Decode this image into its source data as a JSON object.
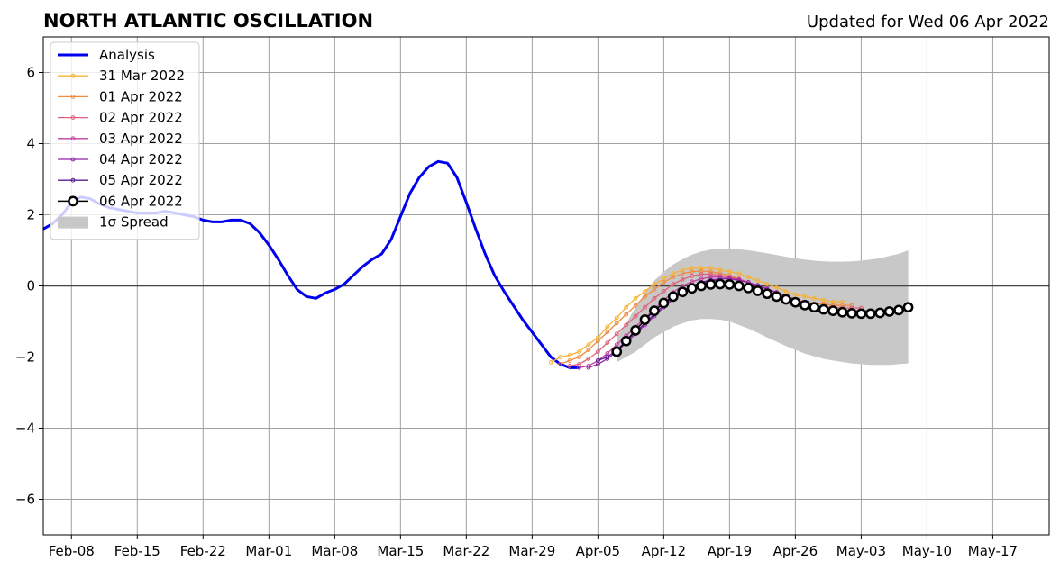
{
  "title": "NORTH ATLANTIC OSCILLATION",
  "subtitle": "Updated for Wed 06 Apr 2022",
  "chart_data": {
    "type": "line",
    "xlim": [
      "2022-02-05",
      "2022-05-23"
    ],
    "ylim": [
      -7,
      7
    ],
    "grid": true,
    "legend_position": "top-left",
    "x_ticks": [
      "Feb-08",
      "Feb-15",
      "Feb-22",
      "Mar-01",
      "Mar-08",
      "Mar-15",
      "Mar-22",
      "Mar-29",
      "Apr-05",
      "Apr-12",
      "Apr-19",
      "Apr-26",
      "May-03",
      "May-10",
      "May-17"
    ],
    "y_ticks": [
      "6",
      "4",
      "2",
      "0",
      "−2",
      "−4",
      "−6"
    ],
    "y_tick_values": [
      6,
      4,
      2,
      0,
      -2,
      -4,
      -6
    ],
    "zero_line": true,
    "series": [
      {
        "name": "Analysis",
        "color": "#0000ee",
        "style": "line",
        "x": [
          "2022-02-05",
          "2022-02-06",
          "2022-02-07",
          "2022-02-08",
          "2022-02-09",
          "2022-02-10",
          "2022-02-11",
          "2022-02-12",
          "2022-02-13",
          "2022-02-14",
          "2022-02-15",
          "2022-02-16",
          "2022-02-17",
          "2022-02-18",
          "2022-02-19",
          "2022-02-20",
          "2022-02-21",
          "2022-02-22",
          "2022-02-23",
          "2022-02-24",
          "2022-02-25",
          "2022-02-26",
          "2022-02-27",
          "2022-02-28",
          "2022-03-01",
          "2022-03-02",
          "2022-03-03",
          "2022-03-04",
          "2022-03-05",
          "2022-03-06",
          "2022-03-07",
          "2022-03-08",
          "2022-03-09",
          "2022-03-10",
          "2022-03-11",
          "2022-03-12",
          "2022-03-13",
          "2022-03-14",
          "2022-03-15",
          "2022-03-16",
          "2022-03-17",
          "2022-03-18",
          "2022-03-19",
          "2022-03-20",
          "2022-03-21",
          "2022-03-22",
          "2022-03-23",
          "2022-03-24",
          "2022-03-25",
          "2022-03-26",
          "2022-03-27",
          "2022-03-28",
          "2022-03-29",
          "2022-03-30",
          "2022-03-31",
          "2022-04-01",
          "2022-04-02",
          "2022-04-03"
        ],
        "values": [
          1.6,
          1.75,
          2.0,
          2.35,
          2.5,
          2.45,
          2.3,
          2.2,
          2.15,
          2.1,
          2.05,
          2.05,
          2.05,
          2.1,
          2.05,
          2.0,
          1.95,
          1.85,
          1.8,
          1.8,
          1.85,
          1.85,
          1.75,
          1.5,
          1.15,
          0.75,
          0.3,
          -0.1,
          -0.3,
          -0.35,
          -0.2,
          -0.1,
          0.05,
          0.3,
          0.55,
          0.75,
          0.9,
          1.3,
          1.95,
          2.6,
          3.05,
          3.35,
          3.5,
          3.45,
          3.05,
          2.35,
          1.6,
          0.9,
          0.3,
          -0.15,
          -0.55,
          -0.95,
          -1.3,
          -1.65,
          -2.0,
          -2.2,
          -2.3,
          -2.3
        ]
      },
      {
        "name": "31 Mar 2022",
        "color": "#f5b235",
        "style": "dotline",
        "start": "2022-03-31",
        "values": [
          -2.15,
          -2.0,
          -1.95,
          -1.85,
          -1.65,
          -1.45,
          -1.15,
          -0.9,
          -0.6,
          -0.35,
          -0.15,
          0.05,
          0.2,
          0.35,
          0.45,
          0.5,
          0.5,
          0.5,
          0.45,
          0.4,
          0.35,
          0.25,
          0.15,
          0.05,
          -0.05,
          -0.15,
          -0.25,
          -0.3,
          -0.35,
          -0.4,
          -0.45,
          -0.45
        ]
      },
      {
        "name": "01 Apr 2022",
        "color": "#ef8a45",
        "style": "dotline",
        "start": "2022-04-01",
        "values": [
          -2.2,
          -2.1,
          -2.0,
          -1.8,
          -1.55,
          -1.3,
          -1.05,
          -0.8,
          -0.55,
          -0.3,
          -0.1,
          0.1,
          0.25,
          0.35,
          0.4,
          0.42,
          0.4,
          0.35,
          0.3,
          0.2,
          0.1,
          0.0,
          -0.1,
          -0.2,
          -0.3,
          -0.38,
          -0.45,
          -0.5,
          -0.5,
          -0.55,
          -0.55,
          -0.55
        ]
      },
      {
        "name": "02 Apr 2022",
        "color": "#e0607a",
        "style": "dotline",
        "start": "2022-04-02",
        "values": [
          -2.25,
          -2.2,
          -2.05,
          -1.85,
          -1.6,
          -1.35,
          -1.1,
          -0.85,
          -0.6,
          -0.35,
          -0.15,
          0.05,
          0.18,
          0.28,
          0.33,
          0.33,
          0.3,
          0.25,
          0.2,
          0.1,
          0.0,
          -0.1,
          -0.2,
          -0.3,
          -0.4,
          -0.48,
          -0.55,
          -0.6,
          -0.6,
          -0.62,
          -0.62,
          -0.62
        ]
      },
      {
        "name": "03 Apr 2022",
        "color": "#c2409e",
        "style": "dotline",
        "start": "2022-04-03",
        "values": [
          -2.3,
          -2.25,
          -2.1,
          -1.9,
          -1.65,
          -1.4,
          -1.15,
          -0.9,
          -0.65,
          -0.4,
          -0.18,
          0.0,
          0.12,
          0.2,
          0.25,
          0.25,
          0.22,
          0.17,
          0.1,
          0.0,
          -0.1,
          -0.2,
          -0.3,
          -0.4,
          -0.5,
          -0.58,
          -0.65,
          -0.68,
          -0.7,
          -0.7,
          -0.7,
          -0.7
        ]
      },
      {
        "name": "04 Apr 2022",
        "color": "#9421a8",
        "style": "dotline",
        "start": "2022-04-04",
        "values": [
          -2.3,
          -2.2,
          -2.05,
          -1.85,
          -1.6,
          -1.35,
          -1.1,
          -0.85,
          -0.6,
          -0.38,
          -0.18,
          -0.02,
          0.1,
          0.17,
          0.2,
          0.2,
          0.16,
          0.1,
          0.02,
          -0.08,
          -0.18,
          -0.28,
          -0.38,
          -0.48,
          -0.57,
          -0.64,
          -0.7,
          -0.73,
          -0.75,
          -0.75,
          -0.75,
          -0.75
        ]
      },
      {
        "name": "05 Apr 2022",
        "color": "#5a1c96",
        "style": "dotline",
        "start": "2022-04-05",
        "values": [
          -2.1,
          -2.0,
          -1.8,
          -1.55,
          -1.3,
          -1.05,
          -0.8,
          -0.55,
          -0.33,
          -0.15,
          0.0,
          0.1,
          0.15,
          0.15,
          0.12,
          0.05,
          -0.05,
          -0.15,
          -0.25,
          -0.35,
          -0.45,
          -0.55,
          -0.62,
          -0.68,
          -0.72,
          -0.75,
          -0.77,
          -0.78,
          -0.78,
          -0.78,
          -0.75,
          -0.72
        ]
      },
      {
        "name": "06 Apr 2022",
        "color": "#000000",
        "style": "circles",
        "start": "2022-04-07",
        "values": [
          -1.85,
          -1.55,
          -1.25,
          -0.95,
          -0.7,
          -0.48,
          -0.3,
          -0.17,
          -0.07,
          0.0,
          0.04,
          0.05,
          0.04,
          0.0,
          -0.06,
          -0.14,
          -0.22,
          -0.3,
          -0.38,
          -0.46,
          -0.54,
          -0.6,
          -0.66,
          -0.7,
          -0.74,
          -0.77,
          -0.78,
          -0.78,
          -0.76,
          -0.72,
          -0.68,
          -0.6
        ]
      }
    ],
    "spread": {
      "name": "1σ Spread",
      "color": "#c8c8c8",
      "start": "2022-04-07",
      "upper": [
        -1.45,
        -1.05,
        -0.6,
        -0.2,
        0.15,
        0.4,
        0.6,
        0.75,
        0.88,
        0.97,
        1.02,
        1.05,
        1.05,
        1.03,
        1.0,
        0.96,
        0.92,
        0.87,
        0.82,
        0.78,
        0.74,
        0.71,
        0.69,
        0.68,
        0.68,
        0.69,
        0.71,
        0.74,
        0.78,
        0.84,
        0.9,
        1.0
      ],
      "lower": [
        -2.15,
        -2.0,
        -1.85,
        -1.65,
        -1.45,
        -1.3,
        -1.15,
        -1.05,
        -0.97,
        -0.93,
        -0.93,
        -0.95,
        -1.0,
        -1.1,
        -1.2,
        -1.32,
        -1.45,
        -1.57,
        -1.69,
        -1.8,
        -1.9,
        -1.98,
        -2.05,
        -2.1,
        -2.14,
        -2.18,
        -2.2,
        -2.22,
        -2.22,
        -2.22,
        -2.2,
        -2.18
      ]
    }
  }
}
